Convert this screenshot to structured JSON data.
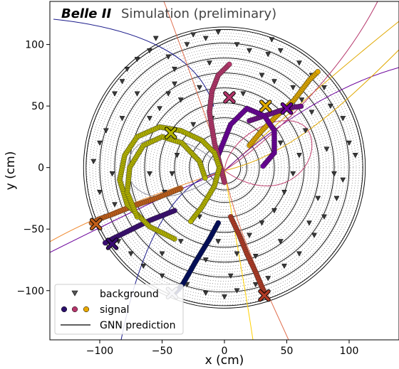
{
  "chart_data": {
    "type": "scatter",
    "title": "Belle II",
    "subtitle": "Simulation (preliminary)",
    "xlabel": "x (cm)",
    "ylabel": "y (cm)",
    "xlim": [
      -140,
      140
    ],
    "ylim": [
      -140,
      135
    ],
    "x_ticks": [
      -100,
      -50,
      0,
      50,
      100
    ],
    "y_ticks": [
      -100,
      -50,
      0,
      50,
      100
    ],
    "x_tick_labels": [
      "−100",
      "−50",
      "0",
      "50",
      "100"
    ],
    "y_tick_labels": [
      "−100",
      "−50",
      "0",
      "50",
      "100"
    ],
    "grid": false,
    "legend_position": "lower-left",
    "legend": [
      {
        "label": "background",
        "marker": "down-triangle",
        "color": "#555555"
      },
      {
        "label": "signal",
        "marker": "circles",
        "colors": [
          "#2b0f6b",
          "#b5366b",
          "#e8a800"
        ]
      },
      {
        "label": "GNN prediction",
        "marker": "line",
        "color": "#000000"
      }
    ],
    "detector": {
      "superlayer_radii": [
        18,
        28,
        40,
        52,
        64,
        76,
        88,
        100,
        111
      ],
      "inner_radius": 13,
      "outer_radius": 113
    },
    "signal_tracks": [
      {
        "color": "#000c5e",
        "points": [
          [
            -5,
            -45
          ],
          [
            -12,
            -58
          ],
          [
            -18,
            -68
          ],
          [
            -24,
            -78
          ],
          [
            -29,
            -87
          ],
          [
            -33,
            -94
          ],
          [
            -37,
            -99
          ],
          [
            -42,
            -104
          ]
        ]
      },
      {
        "color": "#3a0d73",
        "points": [
          [
            -40,
            -35
          ],
          [
            -60,
            -43
          ],
          [
            -78,
            -52
          ],
          [
            -90,
            -58
          ],
          [
            -97,
            -62
          ]
        ]
      },
      {
        "color": "#c2601a",
        "points": [
          [
            -35,
            -17
          ],
          [
            -55,
            -25
          ],
          [
            -75,
            -32
          ],
          [
            -90,
            -38
          ],
          [
            -101,
            -42
          ],
          [
            -108,
            -46
          ]
        ]
      },
      {
        "color": "#b23b25",
        "points": [
          [
            5,
            -40
          ],
          [
            12,
            -55
          ],
          [
            18,
            -70
          ],
          [
            25,
            -85
          ],
          [
            30,
            -97
          ],
          [
            33,
            -104
          ]
        ]
      },
      {
        "color": "#e0a800",
        "points": [
          [
            20,
            18
          ],
          [
            30,
            30
          ],
          [
            42,
            42
          ],
          [
            56,
            55
          ],
          [
            68,
            71
          ],
          [
            76,
            79
          ]
        ]
      },
      {
        "color": "#6e0f88",
        "points": [
          [
            20,
            38
          ],
          [
            32,
            42
          ],
          [
            44,
            46
          ],
          [
            55,
            49
          ],
          [
            63,
            50
          ]
        ]
      },
      {
        "color": "#6a009a",
        "points": [
          [
            -5,
            10
          ],
          [
            5,
            35
          ],
          [
            18,
            48
          ],
          [
            32,
            42
          ],
          [
            40,
            30
          ],
          [
            40,
            12
          ],
          [
            30,
            0
          ]
        ]
      },
      {
        "color": "#b5366b",
        "points": [
          [
            0,
            -12
          ],
          [
            -8,
            20
          ],
          [
            -12,
            45
          ],
          [
            -10,
            62
          ],
          [
            -5,
            75
          ],
          [
            5,
            85
          ]
        ]
      },
      {
        "color": "#b5b500",
        "points": [
          [
            -40,
            -58
          ],
          [
            -60,
            -48
          ],
          [
            -78,
            -30
          ],
          [
            -84,
            -10
          ],
          [
            -80,
            10
          ],
          [
            -70,
            25
          ],
          [
            -52,
            33
          ],
          [
            -35,
            30
          ],
          [
            -18,
            22
          ],
          [
            -8,
            12
          ],
          [
            -4,
            0
          ],
          [
            -8,
            -15
          ],
          [
            -18,
            -32
          ],
          [
            -28,
            -45
          ]
        ]
      },
      {
        "color": "#b5b500",
        "points": [
          [
            -70,
            -40
          ],
          [
            -78,
            -20
          ],
          [
            -76,
            0
          ],
          [
            -65,
            18
          ],
          [
            -50,
            25
          ],
          [
            -34,
            20
          ],
          [
            -20,
            5
          ],
          [
            -15,
            -10
          ]
        ]
      }
    ],
    "track_end_crosses": [
      {
        "x": -103,
        "y": -46,
        "color": "#c2601a"
      },
      {
        "x": -90,
        "y": -62,
        "color": "#3a0d73"
      },
      {
        "x": -42,
        "y": -102,
        "color": "#c8c8dc"
      },
      {
        "x": 32,
        "y": -104,
        "color": "#b23b25"
      },
      {
        "x": 4,
        "y": 57,
        "color": "#b5366b"
      },
      {
        "x": 33,
        "y": 50,
        "color": "#e0a800"
      },
      {
        "x": 50,
        "y": 48,
        "color": "#6a009a"
      },
      {
        "x": -43,
        "y": 28,
        "color": "#b5b500"
      }
    ],
    "background_hits": [
      [
        -100,
        20
      ],
      [
        -95,
        30
      ],
      [
        -88,
        60
      ],
      [
        -82,
        70
      ],
      [
        -78,
        80
      ],
      [
        -70,
        88
      ],
      [
        -60,
        95
      ],
      [
        -55,
        105
      ],
      [
        -45,
        90
      ],
      [
        -40,
        80
      ],
      [
        -30,
        100
      ],
      [
        -25,
        108
      ],
      [
        -15,
        105
      ],
      [
        -5,
        110
      ],
      [
        10,
        100
      ],
      [
        20,
        95
      ],
      [
        35,
        92
      ],
      [
        38,
        104
      ],
      [
        45,
        95
      ],
      [
        60,
        85
      ],
      [
        70,
        75
      ],
      [
        80,
        65
      ],
      [
        85,
        50
      ],
      [
        95,
        40
      ],
      [
        100,
        20
      ],
      [
        105,
        10
      ],
      [
        95,
        -10
      ],
      [
        90,
        -25
      ],
      [
        80,
        -40
      ],
      [
        72,
        -55
      ],
      [
        60,
        -70
      ],
      [
        48,
        -80
      ],
      [
        35,
        -90
      ],
      [
        25,
        -95
      ],
      [
        10,
        -100
      ],
      [
        0,
        -105
      ],
      [
        -15,
        -102
      ],
      [
        -30,
        -95
      ],
      [
        -50,
        -88
      ],
      [
        -65,
        -80
      ],
      [
        -75,
        -70
      ],
      [
        -85,
        -60
      ],
      [
        -95,
        -40
      ],
      [
        -100,
        -20
      ],
      [
        -105,
        5
      ],
      [
        -60,
        40
      ],
      [
        -52,
        48
      ],
      [
        -45,
        60
      ],
      [
        -35,
        55
      ],
      [
        -20,
        65
      ],
      [
        -10,
        40
      ],
      [
        -25,
        35
      ],
      [
        60,
        10
      ],
      [
        55,
        -5
      ],
      [
        48,
        -20
      ],
      [
        40,
        -35
      ],
      [
        30,
        -45
      ],
      [
        20,
        -55
      ],
      [
        65,
        30
      ],
      [
        70,
        45
      ],
      [
        -60,
        -5
      ],
      [
        -48,
        -20
      ],
      [
        -20,
        -40
      ],
      [
        -35,
        -60
      ],
      [
        -50,
        -70
      ],
      [
        40,
        70
      ],
      [
        55,
        65
      ],
      [
        30,
        75
      ],
      [
        75,
        -25
      ],
      [
        88,
        -5
      ],
      [
        -70,
        60
      ],
      [
        -82,
        40
      ],
      [
        -90,
        -5
      ],
      [
        10,
        -70
      ],
      [
        25,
        -72
      ],
      [
        45,
        -60
      ],
      [
        -5,
        -60
      ],
      [
        -15,
        -75
      ],
      [
        62,
        55
      ],
      [
        15,
        60
      ],
      [
        -38,
        10
      ],
      [
        -42,
        -5
      ],
      [
        45,
        20
      ],
      [
        35,
        5
      ],
      [
        -12,
        85
      ],
      [
        -40,
        68
      ],
      [
        68,
        -45
      ],
      [
        82,
        15
      ],
      [
        -88,
        -30
      ],
      [
        5,
        -88
      ]
    ]
  }
}
